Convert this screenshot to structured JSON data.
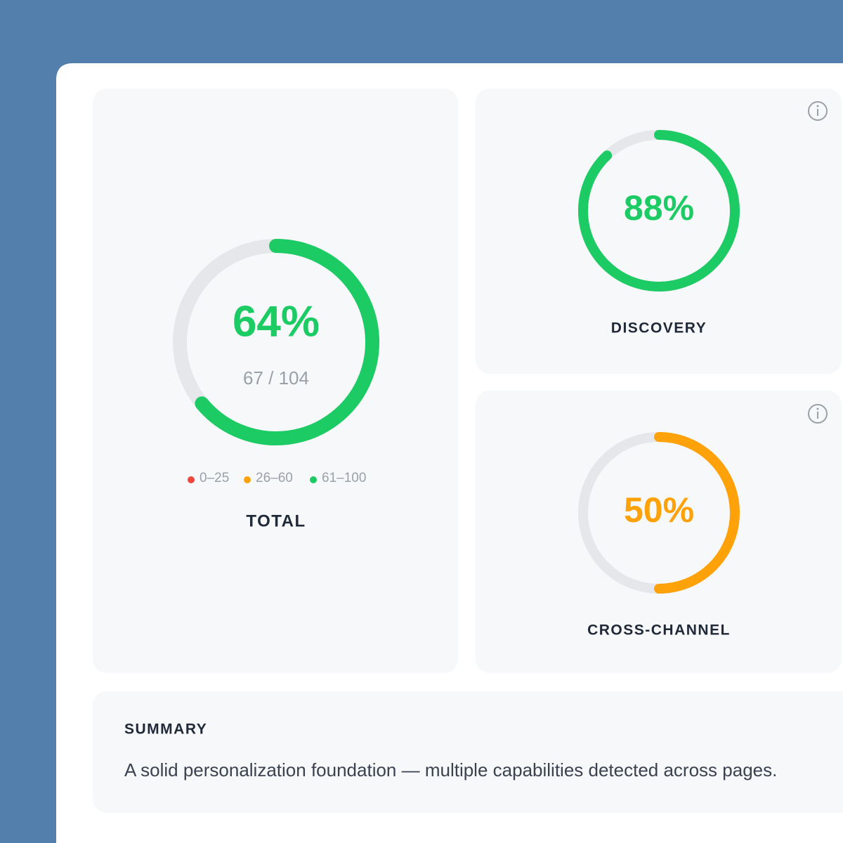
{
  "gauges": [
    {
      "name": "TOTAL",
      "value": 64,
      "value_label": "64%",
      "detail": "67 / 104",
      "color": "#1ccb63"
    },
    {
      "name": "DISCOVERY",
      "value": 88,
      "value_label": "88%",
      "color": "#1ccb63"
    },
    {
      "name": "CROSS-CHANNEL",
      "value": 50,
      "value_label": "50%",
      "color": "#ffa20a"
    }
  ],
  "legend": [
    {
      "label": "0–25",
      "color": "#f0463c"
    },
    {
      "label": "26–60",
      "color": "#ffa20a"
    },
    {
      "label": "61–100",
      "color": "#1ccb63"
    }
  ],
  "summary": {
    "title": "SUMMARY",
    "text": "A solid personalization foundation — multiple capabilities detected across pages."
  }
}
